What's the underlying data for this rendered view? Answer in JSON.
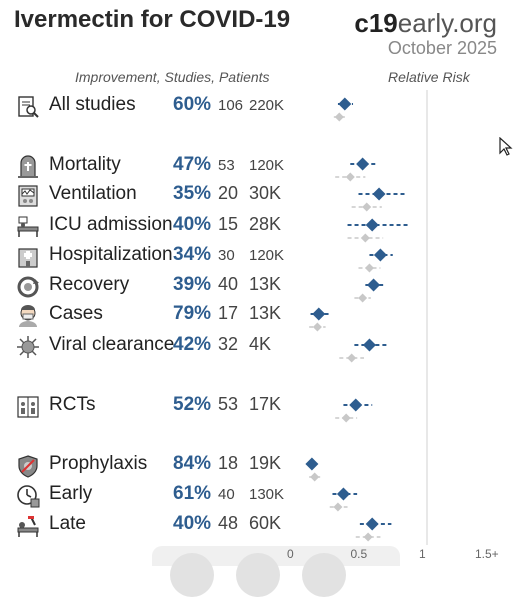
{
  "header": {
    "title": "Ivermectin for COVID-19",
    "brand_bold": "c19",
    "brand_light": "early.org",
    "date": "October 2025"
  },
  "columns": {
    "left": "Improvement, Studies, Patients",
    "right": "Relative Risk"
  },
  "rows": [
    {
      "label": "All studies",
      "pct": "60%",
      "studies": "106",
      "patients": "220K",
      "icon": "document-magnifier-icon"
    },
    {
      "label": "Mortality",
      "pct": "47%",
      "studies": "53",
      "patients": "120K",
      "icon": "tombstone-icon"
    },
    {
      "label": "Ventilation",
      "pct": "35%",
      "studies": "20",
      "patients": "30K",
      "icon": "ventilator-icon"
    },
    {
      "label": "ICU admission",
      "pct": "40%",
      "studies": "15",
      "patients": "28K",
      "icon": "icu-bed-icon"
    },
    {
      "label": "Hospitalization",
      "pct": "34%",
      "studies": "30",
      "patients": "120K",
      "icon": "hospital-icon"
    },
    {
      "label": "Recovery",
      "pct": "39%",
      "studies": "40",
      "patients": "13K",
      "icon": "recovery-icon"
    },
    {
      "label": "Cases",
      "pct": "79%",
      "studies": "17",
      "patients": "13K",
      "icon": "masked-person-icon"
    },
    {
      "label": "Viral clearance",
      "pct": "42%",
      "studies": "32",
      "patients": "4K",
      "icon": "virus-icon"
    },
    {
      "label": "RCTs",
      "pct": "52%",
      "studies": "53",
      "patients": "17K",
      "icon": "rct-icon"
    },
    {
      "label": "Prophylaxis",
      "pct": "84%",
      "studies": "18",
      "patients": "19K",
      "icon": "shield-icon"
    },
    {
      "label": "Early",
      "pct": "61%",
      "studies": "40",
      "patients": "130K",
      "icon": "clock-icon"
    },
    {
      "label": "Late",
      "pct": "40%",
      "studies": "48",
      "patients": "60K",
      "icon": "late-treatment-icon"
    }
  ],
  "chart_data": {
    "type": "scatter",
    "title": "Relative Risk",
    "xlabel": "",
    "ylabel": "",
    "x_ticks": [
      "0",
      "0.5",
      "1",
      "1.5+"
    ],
    "xlim": [
      0,
      1.5
    ],
    "reference_line": 1,
    "categories": [
      "All studies",
      "Mortality",
      "Ventilation",
      "ICU admission",
      "Hospitalization",
      "Recovery",
      "Cases",
      "Viral clearance",
      "RCTs",
      "Prophylaxis",
      "Early",
      "Late"
    ],
    "series": [
      {
        "estimate": [
          0.4,
          0.53,
          0.65,
          0.6,
          0.66,
          0.61,
          0.21,
          0.58,
          0.48,
          0.16,
          0.39,
          0.6
        ],
        "ci_low": [
          0.35,
          0.44,
          0.5,
          0.42,
          0.58,
          0.55,
          0.15,
          0.47,
          0.39,
          0.12,
          0.31,
          0.51
        ],
        "ci_high": [
          0.46,
          0.64,
          0.85,
          0.87,
          0.75,
          0.68,
          0.29,
          0.71,
          0.6,
          0.22,
          0.49,
          0.74
        ]
      },
      {
        "estimate": [
          0.36,
          0.44,
          0.56,
          0.55,
          0.58,
          0.53,
          0.2,
          0.45,
          0.41,
          0.18,
          0.35,
          0.57
        ],
        "ci_low": [
          0.32,
          0.33,
          0.45,
          0.42,
          0.5,
          0.47,
          0.14,
          0.36,
          0.33,
          0.14,
          0.29,
          0.48
        ],
        "ci_high": [
          0.41,
          0.55,
          0.67,
          0.68,
          0.66,
          0.59,
          0.26,
          0.54,
          0.49,
          0.23,
          0.42,
          0.66
        ]
      }
    ],
    "colors": {
      "primary": "#2e5d8f",
      "secondary": "#c8c8c8"
    }
  }
}
